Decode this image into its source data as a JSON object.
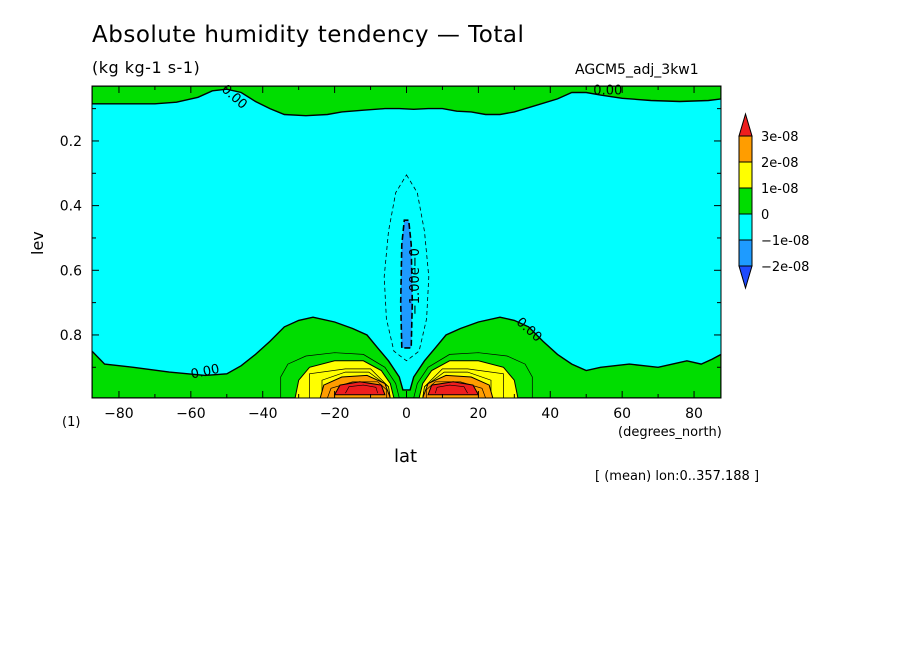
{
  "chart_data": {
    "type": "heatmap",
    "title": "Absolute humidity tendency — Total",
    "subtitle": "(kg kg-1 s-1)",
    "run_label": "AGCM5_adj_3kw1",
    "xlabel": "lat",
    "x_unit": "(degrees_north)",
    "ylabel": "lev",
    "y_unit": "(1)",
    "note": "[ (mean) lon:0..357.188 ]",
    "xlim": [
      -87.5,
      87.5
    ],
    "ylim": [
      0.995,
      0.03
    ],
    "x_ticks": [
      -80,
      -60,
      -40,
      -20,
      0,
      20,
      40,
      60,
      80
    ],
    "y_ticks": [
      0.2,
      0.4,
      0.6,
      0.8
    ],
    "legend": {
      "position": "right",
      "levels": [
        "3e-08",
        "2e-08",
        "1e-08",
        "0",
        "−1e-08",
        "−2e-08"
      ],
      "colors": [
        "#ee1e1e",
        "#ff9d00",
        "#ffff00",
        "#00dd00",
        "#00ffff",
        "#1e9bff",
        "#1e4bff"
      ]
    },
    "contour_labels": [
      {
        "text": "0.00",
        "lat": -48,
        "lev": 0.065,
        "angle": 42
      },
      {
        "text": "0.00",
        "lat": 56,
        "lev": 0.045,
        "angle": 0
      },
      {
        "text": "0.00",
        "lat": 34,
        "lev": 0.785,
        "angle": 42
      },
      {
        "text": "0.00",
        "lat": -56,
        "lev": 0.915,
        "angle": -12
      },
      {
        "text": "−1.00e−0",
        "lat": 2.5,
        "lev": 0.635,
        "angle": -90
      }
    ],
    "regions": {
      "top_green": [
        [
          -87.5,
          0.03
        ],
        [
          87.5,
          0.03
        ],
        [
          87.5,
          0.07
        ],
        [
          84,
          0.075
        ],
        [
          76,
          0.078
        ],
        [
          68,
          0.075
        ],
        [
          60,
          0.068
        ],
        [
          54,
          0.058
        ],
        [
          50,
          0.05
        ],
        [
          46,
          0.05
        ],
        [
          42,
          0.07
        ],
        [
          36,
          0.09
        ],
        [
          30,
          0.11
        ],
        [
          26,
          0.118
        ],
        [
          22,
          0.118
        ],
        [
          18,
          0.11
        ],
        [
          14,
          0.108
        ],
        [
          10,
          0.1
        ],
        [
          6,
          0.1
        ],
        [
          2,
          0.102
        ],
        [
          -2,
          0.1
        ],
        [
          -6,
          0.1
        ],
        [
          -12,
          0.105
        ],
        [
          -18,
          0.11
        ],
        [
          -22,
          0.118
        ],
        [
          -28,
          0.122
        ],
        [
          -34,
          0.118
        ],
        [
          -38,
          0.1
        ],
        [
          -42,
          0.078
        ],
        [
          -46,
          0.05
        ],
        [
          -50,
          0.04
        ],
        [
          -54,
          0.045
        ],
        [
          -58,
          0.065
        ],
        [
          -64,
          0.08
        ],
        [
          -70,
          0.085
        ],
        [
          -80,
          0.085
        ],
        [
          -87.5,
          0.085
        ]
      ],
      "bottom_green": [
        [
          -87.5,
          0.995
        ],
        [
          -87.5,
          0.85
        ],
        [
          -84,
          0.89
        ],
        [
          -76,
          0.9
        ],
        [
          -66,
          0.915
        ],
        [
          -56,
          0.925
        ],
        [
          -50,
          0.92
        ],
        [
          -46,
          0.895
        ],
        [
          -42,
          0.86
        ],
        [
          -38,
          0.82
        ],
        [
          -34,
          0.775
        ],
        [
          -30,
          0.755
        ],
        [
          -26,
          0.745
        ],
        [
          -20,
          0.76
        ],
        [
          -15,
          0.78
        ],
        [
          -11,
          0.8
        ],
        [
          -8,
          0.84
        ],
        [
          -5,
          0.88
        ],
        [
          -2,
          0.93
        ],
        [
          -1,
          0.97
        ],
        [
          1,
          0.97
        ],
        [
          2,
          0.93
        ],
        [
          5,
          0.88
        ],
        [
          8,
          0.84
        ],
        [
          11,
          0.8
        ],
        [
          15,
          0.78
        ],
        [
          20,
          0.76
        ],
        [
          26,
          0.745
        ],
        [
          30,
          0.755
        ],
        [
          34,
          0.775
        ],
        [
          38,
          0.82
        ],
        [
          42,
          0.86
        ],
        [
          46,
          0.89
        ],
        [
          50,
          0.91
        ],
        [
          54,
          0.9
        ],
        [
          58,
          0.895
        ],
        [
          62,
          0.89
        ],
        [
          66,
          0.895
        ],
        [
          70,
          0.9
        ],
        [
          74,
          0.89
        ],
        [
          78,
          0.88
        ],
        [
          82,
          0.89
        ],
        [
          85,
          0.875
        ],
        [
          87.5,
          0.86
        ],
        [
          87.5,
          0.995
        ]
      ],
      "blue_core": [
        [
          -1.3,
          0.84
        ],
        [
          -1.6,
          0.7
        ],
        [
          -1.3,
          0.52
        ],
        [
          -0.6,
          0.445
        ],
        [
          0.6,
          0.445
        ],
        [
          1.3,
          0.52
        ],
        [
          1.6,
          0.7
        ],
        [
          1.3,
          0.84
        ]
      ],
      "dashed_outer": [
        [
          0,
          0.305
        ],
        [
          3,
          0.36
        ],
        [
          5,
          0.48
        ],
        [
          6.2,
          0.62
        ],
        [
          5.6,
          0.75
        ],
        [
          3.5,
          0.85
        ],
        [
          0,
          0.88
        ],
        [
          -3.5,
          0.85
        ],
        [
          -5.6,
          0.75
        ],
        [
          -6.2,
          0.62
        ],
        [
          -5,
          0.48
        ],
        [
          -3,
          0.36
        ]
      ],
      "thin_contour_left": [
        [
          -35,
          0.995
        ],
        [
          -35,
          0.93
        ],
        [
          -33,
          0.89
        ],
        [
          -28,
          0.865
        ],
        [
          -20,
          0.855
        ],
        [
          -12,
          0.86
        ],
        [
          -6,
          0.9
        ],
        [
          -3,
          0.95
        ],
        [
          -2,
          0.995
        ]
      ],
      "thin_contour_right": [
        [
          2,
          0.995
        ],
        [
          3,
          0.95
        ],
        [
          6,
          0.9
        ],
        [
          12,
          0.86
        ],
        [
          20,
          0.855
        ],
        [
          28,
          0.865
        ],
        [
          33,
          0.89
        ],
        [
          35,
          0.93
        ],
        [
          35,
          0.995
        ]
      ],
      "yellow_left": [
        [
          -31,
          0.995
        ],
        [
          -30,
          0.94
        ],
        [
          -27,
          0.9
        ],
        [
          -20,
          0.88
        ],
        [
          -12,
          0.88
        ],
        [
          -7,
          0.91
        ],
        [
          -4.5,
          0.95
        ],
        [
          -3.5,
          0.995
        ]
      ],
      "yellow_right": [
        [
          3.5,
          0.995
        ],
        [
          4.5,
          0.95
        ],
        [
          7,
          0.91
        ],
        [
          12,
          0.88
        ],
        [
          20,
          0.88
        ],
        [
          27,
          0.9
        ],
        [
          30,
          0.94
        ],
        [
          31,
          0.995
        ]
      ],
      "orange_left": [
        [
          -24,
          0.995
        ],
        [
          -23,
          0.955
        ],
        [
          -18,
          0.93
        ],
        [
          -11,
          0.925
        ],
        [
          -6,
          0.95
        ],
        [
          -4.5,
          0.995
        ]
      ],
      "orange_right": [
        [
          4.5,
          0.995
        ],
        [
          6,
          0.95
        ],
        [
          11,
          0.925
        ],
        [
          18,
          0.93
        ],
        [
          23,
          0.955
        ],
        [
          24,
          0.995
        ]
      ],
      "red_left": [
        [
          -20,
          0.985
        ],
        [
          -18.5,
          0.955
        ],
        [
          -13,
          0.945
        ],
        [
          -7,
          0.955
        ],
        [
          -6,
          0.985
        ]
      ],
      "red_right": [
        [
          6,
          0.985
        ],
        [
          7,
          0.955
        ],
        [
          13,
          0.945
        ],
        [
          18.5,
          0.955
        ],
        [
          20,
          0.985
        ]
      ]
    }
  }
}
